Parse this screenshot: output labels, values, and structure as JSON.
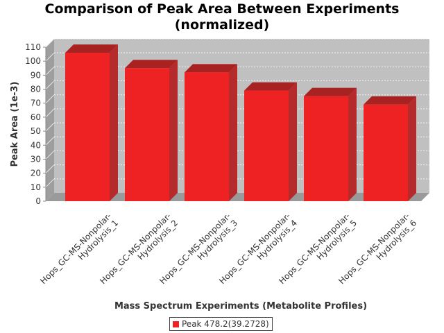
{
  "chart_data": {
    "type": "bar",
    "title_lines": [
      "Comparison of Peak Area Between Experiments",
      "(normalized)"
    ],
    "xlabel": "Mass Spectrum Experiments (Metabolite Profiles)",
    "ylabel": "Peak Area (1e-3)",
    "ylim": [
      0,
      110
    ],
    "yticks": [
      0,
      10,
      20,
      30,
      40,
      50,
      60,
      70,
      80,
      90,
      100,
      110
    ],
    "grid": true,
    "legend_position": "bottom",
    "categories": [
      [
        "Hops_GC-MS-Nonpolar-",
        "Hydrolysis_1"
      ],
      [
        "Hops_GC-MS-Nonpolar-",
        "Hydrolysis_2"
      ],
      [
        "Hops_GC-MS-Nonpolar-",
        "Hydrolysis_3"
      ],
      [
        "Hops_GC-MS-Nonpolar-",
        "Hydrolysis_4"
      ],
      [
        "Hops_GC-MS-Nonpolar-",
        "Hydrolysis_5"
      ],
      [
        "Hops_GC-MS-Nonpolar-",
        "Hydrolysis_6"
      ]
    ],
    "series": [
      {
        "name": "Peak 478.2(39.2728)",
        "color": "#ee2222",
        "values": [
          106,
          95,
          92,
          79,
          75,
          69
        ]
      }
    ]
  }
}
